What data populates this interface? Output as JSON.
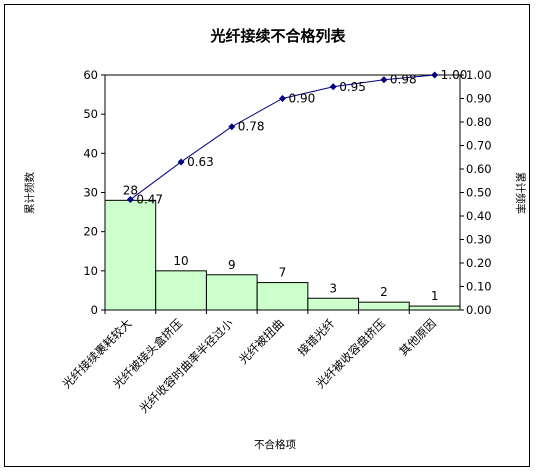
{
  "chart_data": {
    "type": "bar",
    "title": "光纤接续不合格列表",
    "xlabel": "不合格项",
    "ylabel": "累计频数",
    "y2label": "累计频率",
    "categories": [
      "光纤接续裹耗较大",
      "光纤被接头盒挤压",
      "光纤收容时曲率半径过小",
      "光纤被扭曲",
      "接错光纤",
      "光纤被收容盘挤压",
      "其他原因"
    ],
    "series": [
      {
        "values": [
          28,
          10,
          9,
          7,
          3,
          2,
          1
        ],
        "type": "bar",
        "color": "#ccffcc",
        "axis": "left"
      },
      {
        "values": [
          0.47,
          0.63,
          0.78,
          0.9,
          0.95,
          0.98,
          1.0
        ],
        "type": "line",
        "color": "#000080",
        "axis": "right"
      }
    ],
    "bar_labels": [
      "28",
      "10",
      "9",
      "7",
      "3",
      "2",
      "1"
    ],
    "line_labels": [
      "0.47",
      "0.63",
      "0.78",
      "0.90",
      "0.95",
      "0.98",
      "1.00"
    ],
    "ylim": [
      0,
      60
    ],
    "y_ticks": [
      "0",
      "10",
      "20",
      "30",
      "40",
      "50",
      "60"
    ],
    "y2lim": [
      0,
      1
    ],
    "y2_ticks": [
      "0.00",
      "0.10",
      "0.20",
      "0.30",
      "0.40",
      "0.50",
      "0.60",
      "0.70",
      "0.80",
      "0.90",
      "1.00"
    ],
    "grid": false,
    "legend": "none"
  }
}
